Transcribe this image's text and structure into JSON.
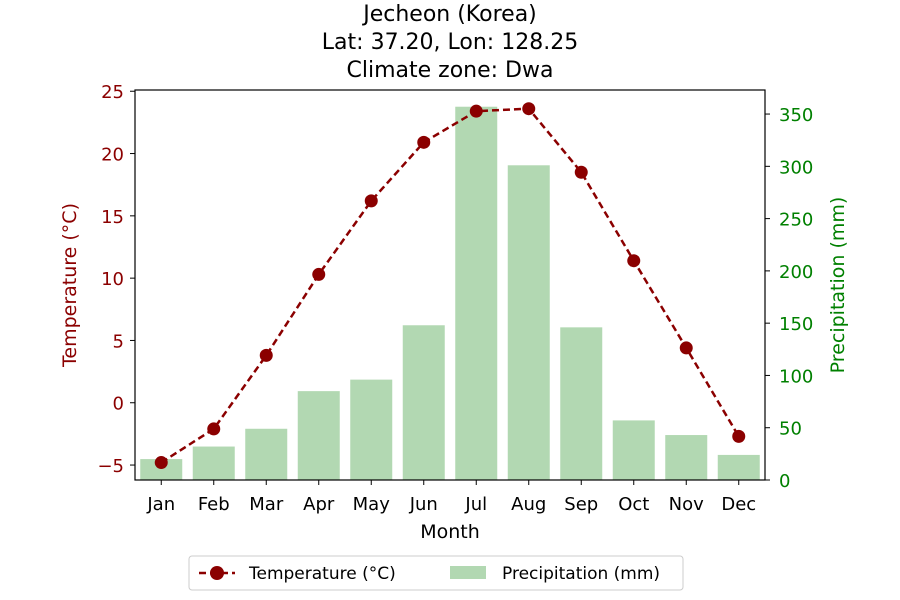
{
  "chart_data": {
    "type": "bar+line",
    "title_lines": [
      "Jecheon (Korea)",
      "Lat: 37.20, Lon: 128.25",
      "Climate zone: Dwa"
    ],
    "xlabel": "Month",
    "ylabel_left": "Temperature (°C)",
    "ylabel_right": "Precipitation (mm)",
    "categories": [
      "Jan",
      "Feb",
      "Mar",
      "Apr",
      "May",
      "Jun",
      "Jul",
      "Aug",
      "Sep",
      "Oct",
      "Nov",
      "Dec"
    ],
    "left_axis": {
      "ylim": [
        -6.2,
        25.1
      ],
      "ticks": [
        -5,
        0,
        5,
        10,
        15,
        20,
        25
      ],
      "tick_labels": [
        "−5",
        "0",
        "5",
        "10",
        "15",
        "20",
        "25"
      ],
      "color": "#8b0000"
    },
    "right_axis": {
      "ylim": [
        0,
        373
      ],
      "ticks": [
        0,
        50,
        100,
        150,
        200,
        250,
        300,
        350
      ],
      "tick_labels": [
        "0",
        "50",
        "100",
        "150",
        "200",
        "250",
        "300",
        "350"
      ],
      "color": "#008000"
    },
    "series": [
      {
        "name": "Temperature (°C)",
        "type": "line",
        "axis": "left",
        "color": "#8b0000",
        "style": "dashed",
        "marker": "circle",
        "values": [
          -4.8,
          -2.1,
          3.8,
          10.3,
          16.2,
          20.9,
          23.4,
          23.6,
          18.5,
          11.4,
          4.4,
          -2.7
        ]
      },
      {
        "name": "Precipitation (mm)",
        "type": "bar",
        "axis": "right",
        "color": "#b2d8b2",
        "values": [
          20,
          32,
          49,
          85,
          96,
          148,
          357,
          301,
          146,
          57,
          43,
          24
        ]
      }
    ],
    "legend": {
      "placement": "bottom-center",
      "items": [
        "Temperature (°C)",
        "Precipitation (mm)"
      ]
    },
    "grid": false
  }
}
